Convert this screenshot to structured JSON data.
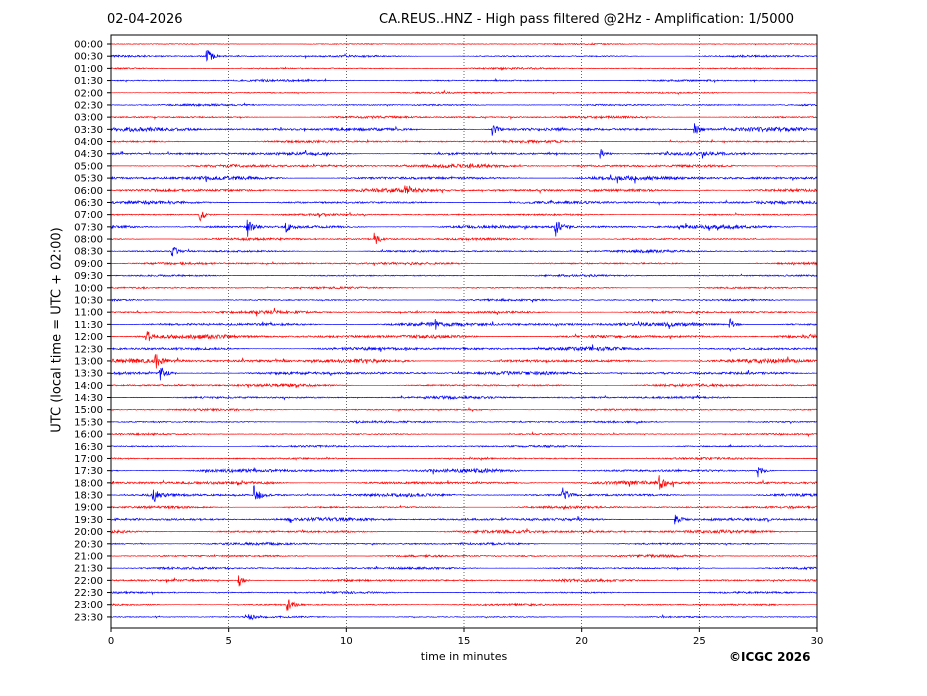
{
  "header": {
    "date": "02-04-2026",
    "title": "CA.REUS..HNZ - High pass filtered @2Hz - Amplification: 1/5000"
  },
  "footer": {
    "copyright": "©ICGC 2026"
  },
  "chart_data": {
    "type": "line",
    "title": "CA.REUS..HNZ - High pass filtered @2Hz - Amplification: 1/5000",
    "xlabel": "time in minutes",
    "ylabel": "UTC (local time = UTC + 02:00)",
    "xlim": [
      0,
      30
    ],
    "xticks": [
      "0",
      "5",
      "10",
      "15",
      "20",
      "25",
      "30"
    ],
    "xtick_values": [
      0,
      5,
      10,
      15,
      20,
      25,
      30
    ],
    "grid": "vertical dotted lines at 5-minute intervals",
    "colors": [
      "#ff0000",
      "#0000ff"
    ],
    "rows": [
      "00:00",
      "00:30",
      "01:00",
      "01:30",
      "02:00",
      "02:30",
      "03:00",
      "03:30",
      "04:00",
      "04:30",
      "05:00",
      "05:30",
      "06:00",
      "06:30",
      "07:00",
      "07:30",
      "08:00",
      "08:30",
      "09:00",
      "09:30",
      "10:00",
      "10:30",
      "11:00",
      "11:30",
      "12:00",
      "12:30",
      "13:00",
      "13:30",
      "14:00",
      "14:30",
      "15:00",
      "15:30",
      "16:00",
      "16:30",
      "17:00",
      "17:30",
      "18:00",
      "18:30",
      "19:00",
      "19:30",
      "20:00",
      "20:30",
      "21:00",
      "21:30",
      "22:00",
      "22:30",
      "23:00",
      "23:30"
    ],
    "noise_level": [
      0.3,
      0.5,
      0.4,
      0.5,
      0.4,
      0.5,
      0.6,
      1.0,
      0.6,
      0.8,
      0.9,
      1.0,
      0.9,
      0.8,
      0.5,
      0.9,
      0.6,
      0.6,
      0.6,
      0.5,
      0.5,
      0.5,
      0.7,
      1.0,
      1.0,
      0.9,
      1.0,
      0.9,
      0.7,
      0.7,
      0.5,
      0.5,
      0.4,
      0.5,
      0.5,
      0.9,
      0.9,
      0.8,
      0.6,
      0.9,
      0.8,
      0.6,
      0.6,
      0.6,
      0.7,
      0.5,
      0.5,
      0.4
    ],
    "events": [
      {
        "row": 1,
        "minute": 4.1,
        "amp": 8
      },
      {
        "row": 7,
        "minute": 16.2,
        "amp": 6
      },
      {
        "row": 7,
        "minute": 24.8,
        "amp": 6
      },
      {
        "row": 9,
        "minute": 20.8,
        "amp": 6
      },
      {
        "row": 12,
        "minute": 12.5,
        "amp": 6
      },
      {
        "row": 14,
        "minute": 3.8,
        "amp": 6
      },
      {
        "row": 15,
        "minute": 5.8,
        "amp": 10
      },
      {
        "row": 15,
        "minute": 7.4,
        "amp": 6
      },
      {
        "row": 15,
        "minute": 18.9,
        "amp": 9
      },
      {
        "row": 16,
        "minute": 11.2,
        "amp": 7
      },
      {
        "row": 17,
        "minute": 2.6,
        "amp": 6
      },
      {
        "row": 23,
        "minute": 26.3,
        "amp": 8
      },
      {
        "row": 24,
        "minute": 1.5,
        "amp": 7
      },
      {
        "row": 26,
        "minute": 1.9,
        "amp": 8
      },
      {
        "row": 27,
        "minute": 2.1,
        "amp": 8
      },
      {
        "row": 35,
        "minute": 27.5,
        "amp": 7
      },
      {
        "row": 36,
        "minute": 23.3,
        "amp": 7
      },
      {
        "row": 37,
        "minute": 1.8,
        "amp": 8
      },
      {
        "row": 37,
        "minute": 6.1,
        "amp": 9
      },
      {
        "row": 37,
        "minute": 19.2,
        "amp": 7
      },
      {
        "row": 39,
        "minute": 24.0,
        "amp": 6
      },
      {
        "row": 44,
        "minute": 5.4,
        "amp": 8
      },
      {
        "row": 46,
        "minute": 7.5,
        "amp": 7
      },
      {
        "row": 47,
        "minute": 5.9,
        "amp": 5
      }
    ]
  }
}
